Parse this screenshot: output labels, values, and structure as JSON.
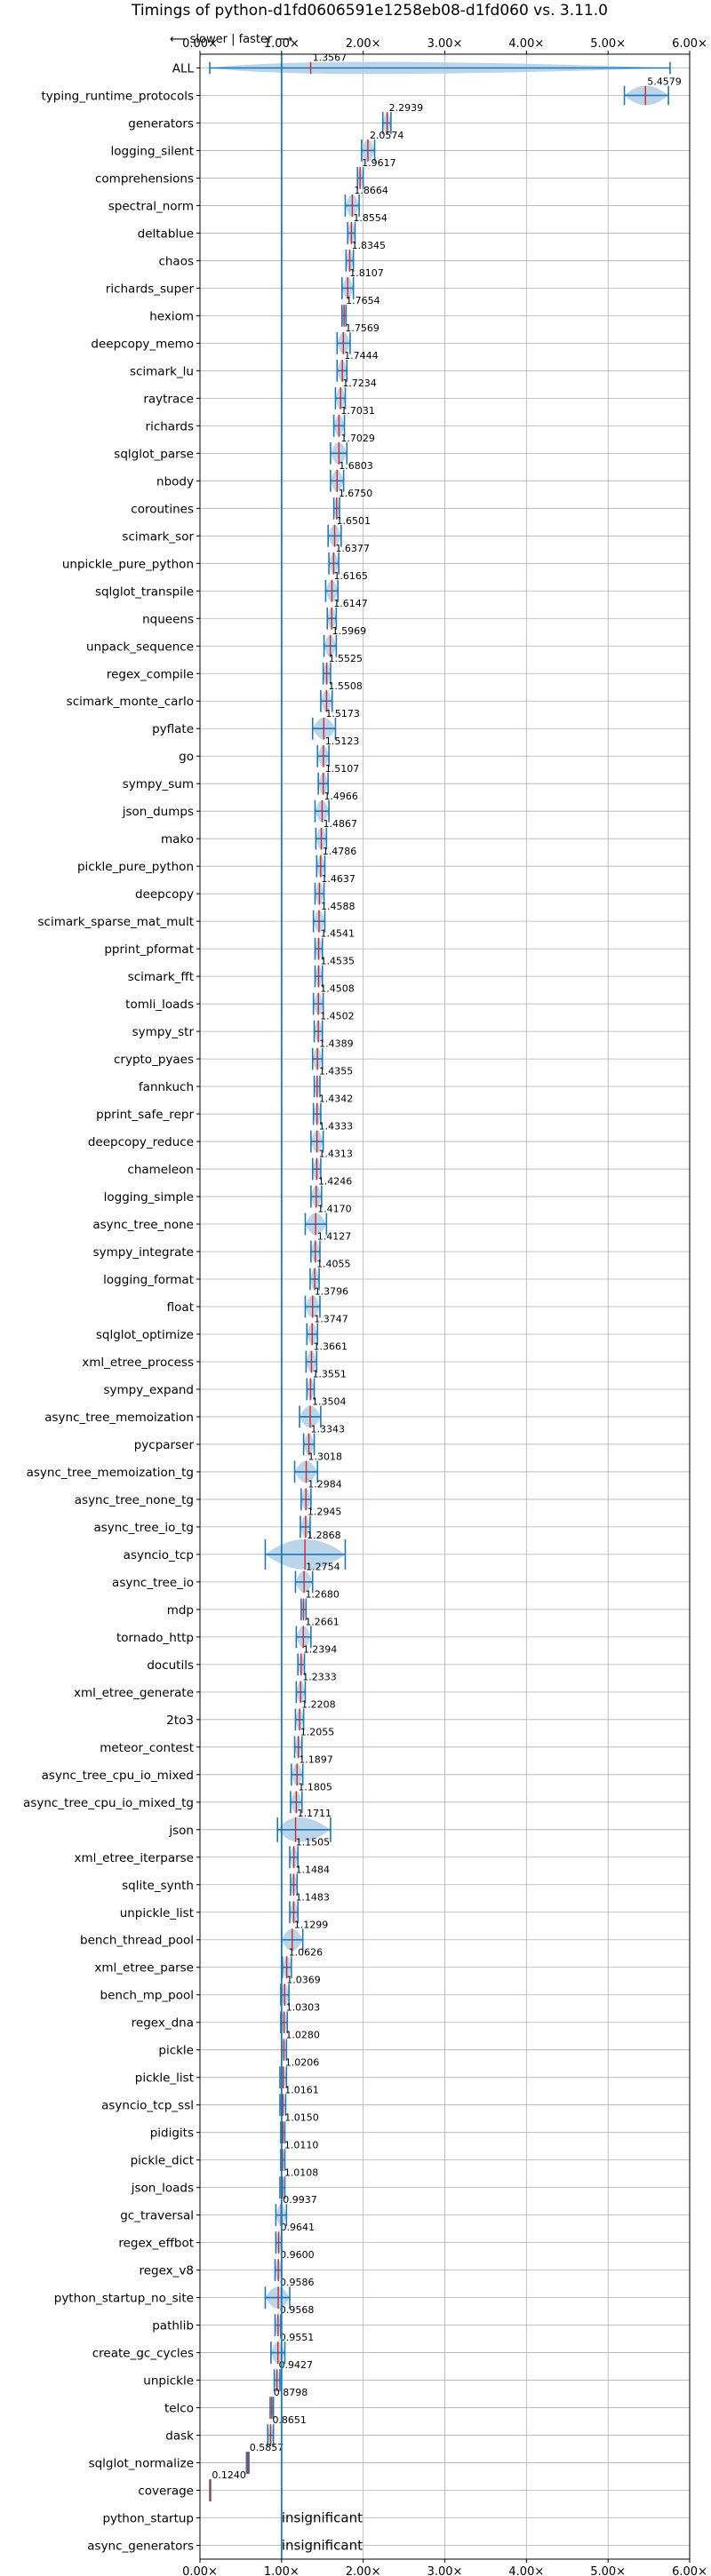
{
  "chart_data": {
    "type": "violin",
    "title": "Timings of python-d1fd0606591e1258eb08-d1fd060 vs. 3.11.0",
    "direction_label": "⟵ slower | faster ⟶",
    "xlim": [
      0,
      6
    ],
    "x_ticks": [
      "0.00×",
      "1.00×",
      "2.00×",
      "3.00×",
      "4.00×",
      "5.00×",
      "6.00×"
    ],
    "grid": true,
    "reference_line": 1.0,
    "colors": {
      "violin": "#aecce6",
      "line": "#1f77b4",
      "median": "#d62728",
      "grid": "#b0b0b0"
    },
    "benchmarks": [
      {
        "name": "ALL",
        "value": 1.3567,
        "label": "1.3567",
        "lo": 0.12,
        "hi": 5.76,
        "width": 0.22
      },
      {
        "name": "typing_runtime_protocols",
        "value": 5.4579,
        "label": "5.4579",
        "lo": 5.2,
        "hi": 5.74,
        "width": 0.35
      },
      {
        "name": "generators",
        "value": 2.2939,
        "label": "2.2939",
        "lo": 2.24,
        "hi": 2.34,
        "width": 0.4
      },
      {
        "name": "logging_silent",
        "value": 2.0574,
        "label": "2.0574",
        "lo": 1.98,
        "hi": 2.14,
        "width": 0.4
      },
      {
        "name": "comprehensions",
        "value": 1.9617,
        "label": "1.9617",
        "lo": 1.93,
        "hi": 2.0,
        "width": 0.4
      },
      {
        "name": "spectral_norm",
        "value": 1.8664,
        "label": "1.8664",
        "lo": 1.78,
        "hi": 1.95,
        "width": 0.4
      },
      {
        "name": "deltablue",
        "value": 1.8554,
        "label": "1.8554",
        "lo": 1.81,
        "hi": 1.9,
        "width": 0.4
      },
      {
        "name": "chaos",
        "value": 1.8345,
        "label": "1.8345",
        "lo": 1.79,
        "hi": 1.88,
        "width": 0.4
      },
      {
        "name": "richards_super",
        "value": 1.8107,
        "label": "1.8107",
        "lo": 1.74,
        "hi": 1.88,
        "width": 0.4
      },
      {
        "name": "hexiom",
        "value": 1.7654,
        "label": "1.7654",
        "lo": 1.74,
        "hi": 1.79,
        "width": 0.4
      },
      {
        "name": "deepcopy_memo",
        "value": 1.7569,
        "label": "1.7569",
        "lo": 1.68,
        "hi": 1.84,
        "width": 0.4
      },
      {
        "name": "scimark_lu",
        "value": 1.7444,
        "label": "1.7444",
        "lo": 1.68,
        "hi": 1.8,
        "width": 0.4
      },
      {
        "name": "raytrace",
        "value": 1.7234,
        "label": "1.7234",
        "lo": 1.66,
        "hi": 1.78,
        "width": 0.4
      },
      {
        "name": "richards",
        "value": 1.7031,
        "label": "1.7031",
        "lo": 1.64,
        "hi": 1.77,
        "width": 0.4
      },
      {
        "name": "sqlglot_parse",
        "value": 1.7029,
        "label": "1.7029",
        "lo": 1.6,
        "hi": 1.8,
        "width": 0.4
      },
      {
        "name": "nbody",
        "value": 1.6803,
        "label": "1.6803",
        "lo": 1.6,
        "hi": 1.76,
        "width": 0.4
      },
      {
        "name": "coroutines",
        "value": 1.675,
        "label": "1.6750",
        "lo": 1.64,
        "hi": 1.71,
        "width": 0.4
      },
      {
        "name": "scimark_sor",
        "value": 1.6501,
        "label": "1.6501",
        "lo": 1.57,
        "hi": 1.73,
        "width": 0.4
      },
      {
        "name": "unpickle_pure_python",
        "value": 1.6377,
        "label": "1.6377",
        "lo": 1.58,
        "hi": 1.7,
        "width": 0.4
      },
      {
        "name": "sqlglot_transpile",
        "value": 1.6165,
        "label": "1.6165",
        "lo": 1.54,
        "hi": 1.69,
        "width": 0.4
      },
      {
        "name": "nqueens",
        "value": 1.6147,
        "label": "1.6147",
        "lo": 1.56,
        "hi": 1.67,
        "width": 0.4
      },
      {
        "name": "unpack_sequence",
        "value": 1.5969,
        "label": "1.5969",
        "lo": 1.52,
        "hi": 1.67,
        "width": 0.4
      },
      {
        "name": "regex_compile",
        "value": 1.5525,
        "label": "1.5525",
        "lo": 1.51,
        "hi": 1.6,
        "width": 0.4
      },
      {
        "name": "scimark_monte_carlo",
        "value": 1.5508,
        "label": "1.5508",
        "lo": 1.48,
        "hi": 1.62,
        "width": 0.4
      },
      {
        "name": "pyflate",
        "value": 1.5173,
        "label": "1.5173",
        "lo": 1.38,
        "hi": 1.66,
        "width": 0.4
      },
      {
        "name": "go",
        "value": 1.5123,
        "label": "1.5123",
        "lo": 1.44,
        "hi": 1.58,
        "width": 0.4
      },
      {
        "name": "sympy_sum",
        "value": 1.5107,
        "label": "1.5107",
        "lo": 1.45,
        "hi": 1.57,
        "width": 0.4
      },
      {
        "name": "json_dumps",
        "value": 1.4966,
        "label": "1.4966",
        "lo": 1.41,
        "hi": 1.58,
        "width": 0.4
      },
      {
        "name": "mako",
        "value": 1.4867,
        "label": "1.4867",
        "lo": 1.42,
        "hi": 1.55,
        "width": 0.4
      },
      {
        "name": "pickle_pure_python",
        "value": 1.4786,
        "label": "1.4786",
        "lo": 1.43,
        "hi": 1.53,
        "width": 0.4
      },
      {
        "name": "deepcopy",
        "value": 1.4637,
        "label": "1.4637",
        "lo": 1.41,
        "hi": 1.52,
        "width": 0.4
      },
      {
        "name": "scimark_sparse_mat_mult",
        "value": 1.4588,
        "label": "1.4588",
        "lo": 1.39,
        "hi": 1.53,
        "width": 0.4
      },
      {
        "name": "pprint_pformat",
        "value": 1.4541,
        "label": "1.4541",
        "lo": 1.41,
        "hi": 1.5,
        "width": 0.4
      },
      {
        "name": "scimark_fft",
        "value": 1.4535,
        "label": "1.4535",
        "lo": 1.41,
        "hi": 1.5,
        "width": 0.4
      },
      {
        "name": "tomli_loads",
        "value": 1.4508,
        "label": "1.4508",
        "lo": 1.39,
        "hi": 1.51,
        "width": 0.4
      },
      {
        "name": "sympy_str",
        "value": 1.4502,
        "label": "1.4502",
        "lo": 1.4,
        "hi": 1.5,
        "width": 0.4
      },
      {
        "name": "crypto_pyaes",
        "value": 1.4389,
        "label": "1.4389",
        "lo": 1.38,
        "hi": 1.5,
        "width": 0.4
      },
      {
        "name": "fannkuch",
        "value": 1.4355,
        "label": "1.4355",
        "lo": 1.4,
        "hi": 1.47,
        "width": 0.4
      },
      {
        "name": "pprint_safe_repr",
        "value": 1.4342,
        "label": "1.4342",
        "lo": 1.39,
        "hi": 1.48,
        "width": 0.4
      },
      {
        "name": "deepcopy_reduce",
        "value": 1.4333,
        "label": "1.4333",
        "lo": 1.36,
        "hi": 1.51,
        "width": 0.4
      },
      {
        "name": "chameleon",
        "value": 1.4313,
        "label": "1.4313",
        "lo": 1.38,
        "hi": 1.48,
        "width": 0.4
      },
      {
        "name": "logging_simple",
        "value": 1.4246,
        "label": "1.4246",
        "lo": 1.36,
        "hi": 1.49,
        "width": 0.4
      },
      {
        "name": "async_tree_none",
        "value": 1.417,
        "label": "1.4170",
        "lo": 1.29,
        "hi": 1.55,
        "width": 0.4
      },
      {
        "name": "sympy_integrate",
        "value": 1.4127,
        "label": "1.4127",
        "lo": 1.36,
        "hi": 1.47,
        "width": 0.4
      },
      {
        "name": "logging_format",
        "value": 1.4055,
        "label": "1.4055",
        "lo": 1.35,
        "hi": 1.46,
        "width": 0.4
      },
      {
        "name": "float",
        "value": 1.3796,
        "label": "1.3796",
        "lo": 1.29,
        "hi": 1.47,
        "width": 0.4
      },
      {
        "name": "sqlglot_optimize",
        "value": 1.3747,
        "label": "1.3747",
        "lo": 1.31,
        "hi": 1.44,
        "width": 0.4
      },
      {
        "name": "xml_etree_process",
        "value": 1.3661,
        "label": "1.3661",
        "lo": 1.3,
        "hi": 1.43,
        "width": 0.4
      },
      {
        "name": "sympy_expand",
        "value": 1.3551,
        "label": "1.3551",
        "lo": 1.31,
        "hi": 1.4,
        "width": 0.4
      },
      {
        "name": "async_tree_memoization",
        "value": 1.3504,
        "label": "1.3504",
        "lo": 1.22,
        "hi": 1.48,
        "width": 0.4
      },
      {
        "name": "pycparser",
        "value": 1.3343,
        "label": "1.3343",
        "lo": 1.27,
        "hi": 1.4,
        "width": 0.4
      },
      {
        "name": "async_tree_memoization_tg",
        "value": 1.3018,
        "label": "1.3018",
        "lo": 1.16,
        "hi": 1.44,
        "width": 0.4
      },
      {
        "name": "async_tree_none_tg",
        "value": 1.2984,
        "label": "1.2984",
        "lo": 1.24,
        "hi": 1.36,
        "width": 0.4
      },
      {
        "name": "async_tree_io_tg",
        "value": 1.2945,
        "label": "1.2945",
        "lo": 1.23,
        "hi": 1.35,
        "width": 0.4
      },
      {
        "name": "asyncio_tcp",
        "value": 1.2868,
        "label": "1.2868",
        "lo": 0.8,
        "hi": 1.78,
        "width": 0.55
      },
      {
        "name": "async_tree_io",
        "value": 1.2754,
        "label": "1.2754",
        "lo": 1.17,
        "hi": 1.38,
        "width": 0.4
      },
      {
        "name": "mdp",
        "value": 1.268,
        "label": "1.2680",
        "lo": 1.24,
        "hi": 1.3,
        "width": 0.4
      },
      {
        "name": "tornado_http",
        "value": 1.2661,
        "label": "1.2661",
        "lo": 1.18,
        "hi": 1.36,
        "width": 0.4
      },
      {
        "name": "docutils",
        "value": 1.2394,
        "label": "1.2394",
        "lo": 1.2,
        "hi": 1.28,
        "width": 0.4
      },
      {
        "name": "xml_etree_generate",
        "value": 1.2333,
        "label": "1.2333",
        "lo": 1.18,
        "hi": 1.29,
        "width": 0.4
      },
      {
        "name": "2to3",
        "value": 1.2208,
        "label": "1.2208",
        "lo": 1.17,
        "hi": 1.27,
        "width": 0.4
      },
      {
        "name": "meteor_contest",
        "value": 1.2055,
        "label": "1.2055",
        "lo": 1.16,
        "hi": 1.25,
        "width": 0.4
      },
      {
        "name": "async_tree_cpu_io_mixed",
        "value": 1.1897,
        "label": "1.1897",
        "lo": 1.12,
        "hi": 1.26,
        "width": 0.4
      },
      {
        "name": "async_tree_cpu_io_mixed_tg",
        "value": 1.1805,
        "label": "1.1805",
        "lo": 1.11,
        "hi": 1.25,
        "width": 0.4
      },
      {
        "name": "json",
        "value": 1.1711,
        "label": "1.1711",
        "lo": 0.95,
        "hi": 1.6,
        "width": 0.45
      },
      {
        "name": "xml_etree_iterparse",
        "value": 1.1505,
        "label": "1.1505",
        "lo": 1.1,
        "hi": 1.2,
        "width": 0.4
      },
      {
        "name": "sqlite_synth",
        "value": 1.1484,
        "label": "1.1484",
        "lo": 1.11,
        "hi": 1.19,
        "width": 0.4
      },
      {
        "name": "unpickle_list",
        "value": 1.1483,
        "label": "1.1483",
        "lo": 1.1,
        "hi": 1.2,
        "width": 0.4
      },
      {
        "name": "bench_thread_pool",
        "value": 1.1299,
        "label": "1.1299",
        "lo": 1.0,
        "hi": 1.26,
        "width": 0.4
      },
      {
        "name": "xml_etree_parse",
        "value": 1.0626,
        "label": "1.0626",
        "lo": 1.01,
        "hi": 1.12,
        "width": 0.4
      },
      {
        "name": "bench_mp_pool",
        "value": 1.0369,
        "label": "1.0369",
        "lo": 0.99,
        "hi": 1.09,
        "width": 0.4
      },
      {
        "name": "regex_dna",
        "value": 1.0303,
        "label": "1.0303",
        "lo": 0.99,
        "hi": 1.07,
        "width": 0.4
      },
      {
        "name": "pickle",
        "value": 1.028,
        "label": "1.0280",
        "lo": 1.0,
        "hi": 1.06,
        "width": 0.4
      },
      {
        "name": "pickle_list",
        "value": 1.0206,
        "label": "1.0206",
        "lo": 0.98,
        "hi": 1.06,
        "width": 0.4
      },
      {
        "name": "asyncio_tcp_ssl",
        "value": 1.0161,
        "label": "1.0161",
        "lo": 0.98,
        "hi": 1.05,
        "width": 0.4
      },
      {
        "name": "pidigits",
        "value": 1.015,
        "label": "1.0150",
        "lo": 0.99,
        "hi": 1.04,
        "width": 0.4
      },
      {
        "name": "pickle_dict",
        "value": 1.011,
        "label": "1.0110",
        "lo": 0.99,
        "hi": 1.04,
        "width": 0.4
      },
      {
        "name": "json_loads",
        "value": 1.0108,
        "label": "1.0108",
        "lo": 0.98,
        "hi": 1.04,
        "width": 0.4
      },
      {
        "name": "gc_traversal",
        "value": 0.9937,
        "label": "0.9937",
        "lo": 0.93,
        "hi": 1.06,
        "width": 0.4
      },
      {
        "name": "regex_effbot",
        "value": 0.9641,
        "label": "0.9641",
        "lo": 0.93,
        "hi": 1.0,
        "width": 0.4
      },
      {
        "name": "regex_v8",
        "value": 0.96,
        "label": "0.9600",
        "lo": 0.92,
        "hi": 1.0,
        "width": 0.4
      },
      {
        "name": "python_startup_no_site",
        "value": 0.9586,
        "label": "0.9586",
        "lo": 0.8,
        "hi": 1.1,
        "width": 0.4
      },
      {
        "name": "pathlib",
        "value": 0.9568,
        "label": "0.9568",
        "lo": 0.92,
        "hi": 0.99,
        "width": 0.4
      },
      {
        "name": "create_gc_cycles",
        "value": 0.9551,
        "label": "0.9551",
        "lo": 0.87,
        "hi": 1.04,
        "width": 0.4
      },
      {
        "name": "unpickle",
        "value": 0.9427,
        "label": "0.9427",
        "lo": 0.91,
        "hi": 0.98,
        "width": 0.4
      },
      {
        "name": "telco",
        "value": 0.8798,
        "label": "0.8798",
        "lo": 0.86,
        "hi": 0.9,
        "width": 0.4
      },
      {
        "name": "dask",
        "value": 0.8651,
        "label": "0.8651",
        "lo": 0.83,
        "hi": 0.9,
        "width": 0.4
      },
      {
        "name": "sqlglot_normalize",
        "value": 0.5857,
        "label": "0.5857",
        "lo": 0.57,
        "hi": 0.6,
        "width": 0.4
      },
      {
        "name": "coverage",
        "value": 0.124,
        "label": "0.1240",
        "lo": 0.12,
        "hi": 0.13,
        "width": 0.4
      },
      {
        "name": "python_startup",
        "value": null,
        "label": "insignificant"
      },
      {
        "name": "async_generators",
        "value": null,
        "label": "insignificant"
      }
    ]
  }
}
